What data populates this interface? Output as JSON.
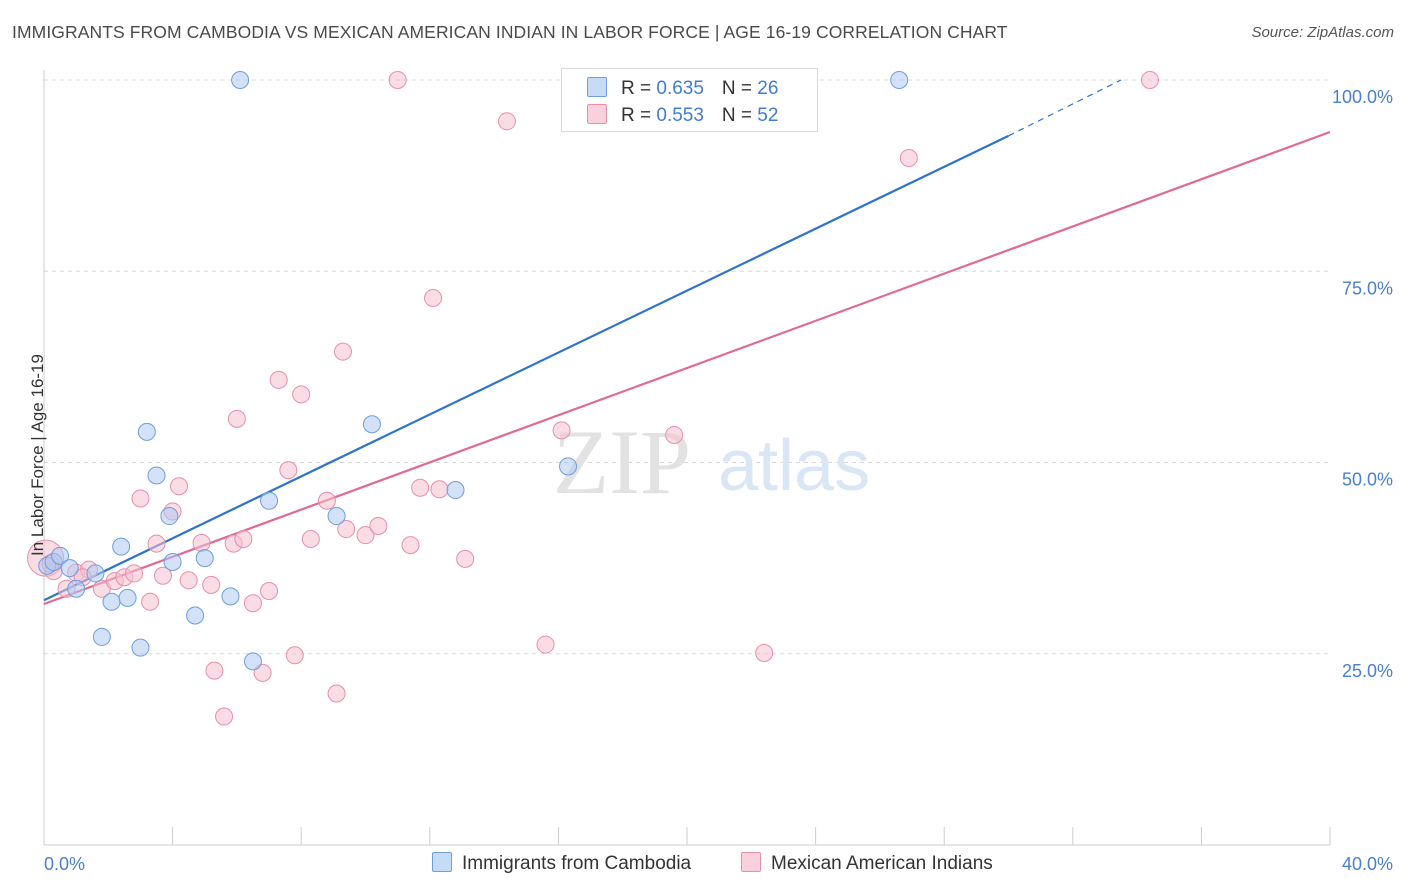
{
  "title": "IMMIGRANTS FROM CAMBODIA VS MEXICAN AMERICAN INDIAN IN LABOR FORCE | AGE 16-19 CORRELATION CHART",
  "source": "Source: ZipAtlas.com",
  "watermark": {
    "zip": "ZIP",
    "atlas": "atlas"
  },
  "legend": {
    "cambodia": {
      "r_label": "R = ",
      "r_value": "0.635",
      "n_label": "N = ",
      "n_value": "26"
    },
    "mexican": {
      "r_label": "R = ",
      "r_value": "0.553",
      "n_label": "N = ",
      "n_value": "52"
    }
  },
  "colors": {
    "cambodia_fill": "#aecbf2",
    "cambodia_stroke": "#6e9edb",
    "cambodia_line": "#2f73cc",
    "mexican_fill": "#f6c0d0",
    "mexican_stroke": "#e88fab",
    "mexican_line": "#e06a94",
    "grid": "#d8d8d8",
    "tick_label": "#4a7fcc"
  },
  "chart_data": {
    "type": "scatter",
    "title": "IMMIGRANTS FROM CAMBODIA VS MEXICAN AMERICAN INDIAN IN LABOR FORCE | AGE 16-19 CORRELATION CHART",
    "xlabel": "",
    "ylabel": "In Labor Force | Age 16-19",
    "xlim": [
      0,
      40
    ],
    "ylim": [
      0,
      102
    ],
    "x_tick_labels": [
      "0.0%",
      "40.0%"
    ],
    "y_ticks": [
      25,
      50,
      75,
      100
    ],
    "y_tick_labels": [
      "25.0%",
      "50.0%",
      "75.0%",
      "100.0%"
    ],
    "grid": true,
    "legend_position": "top-center",
    "series": [
      {
        "name": "Immigrants from Cambodia",
        "points": [
          [
            0.1,
            36.5
          ],
          [
            0.3,
            37.0
          ],
          [
            0.5,
            37.8
          ],
          [
            0.8,
            36.2
          ],
          [
            1.0,
            33.5
          ],
          [
            1.6,
            35.5
          ],
          [
            1.8,
            27.2
          ],
          [
            2.1,
            31.8
          ],
          [
            2.4,
            39.0
          ],
          [
            2.6,
            32.3
          ],
          [
            3.0,
            25.8
          ],
          [
            3.2,
            54.0
          ],
          [
            3.5,
            48.3
          ],
          [
            3.9,
            43.0
          ],
          [
            4.0,
            37.0
          ],
          [
            4.7,
            30.0
          ],
          [
            5.0,
            37.5
          ],
          [
            5.8,
            32.5
          ],
          [
            6.1,
            100.0
          ],
          [
            6.5,
            24.0
          ],
          [
            7.0,
            45.0
          ],
          [
            9.1,
            43.0
          ],
          [
            10.2,
            55.0
          ],
          [
            12.8,
            46.4
          ],
          [
            16.3,
            49.5
          ],
          [
            26.6,
            100.0
          ]
        ],
        "trend": {
          "x": [
            0,
            30.0
          ],
          "y": [
            32.0,
            92.7
          ],
          "dashed_extension": {
            "x": [
              30.0,
              33.5
            ],
            "y": [
              92.7,
              100.0
            ]
          }
        }
      },
      {
        "name": "Mexican American Indians",
        "points": [
          [
            0.05,
            37.5
          ],
          [
            0.3,
            35.8
          ],
          [
            0.7,
            33.5
          ],
          [
            1.0,
            35.6
          ],
          [
            1.4,
            36.0
          ],
          [
            1.8,
            33.5
          ],
          [
            2.2,
            34.5
          ],
          [
            2.5,
            35.0
          ],
          [
            2.8,
            35.5
          ],
          [
            3.0,
            45.3
          ],
          [
            3.3,
            31.8
          ],
          [
            3.5,
            39.4
          ],
          [
            3.7,
            35.2
          ],
          [
            4.0,
            43.6
          ],
          [
            4.2,
            46.9
          ],
          [
            4.5,
            34.6
          ],
          [
            4.9,
            39.5
          ],
          [
            5.3,
            22.8
          ],
          [
            5.2,
            34.0
          ],
          [
            5.6,
            16.8
          ],
          [
            5.9,
            39.4
          ],
          [
            6.0,
            55.7
          ],
          [
            6.2,
            40.0
          ],
          [
            6.5,
            31.6
          ],
          [
            6.8,
            22.5
          ],
          [
            7.0,
            33.2
          ],
          [
            7.3,
            60.8
          ],
          [
            7.6,
            49.0
          ],
          [
            7.8,
            24.8
          ],
          [
            8.0,
            58.9
          ],
          [
            8.3,
            40.0
          ],
          [
            8.8,
            45.0
          ],
          [
            9.1,
            19.8
          ],
          [
            9.3,
            64.5
          ],
          [
            9.4,
            41.3
          ],
          [
            10.0,
            40.5
          ],
          [
            10.4,
            41.7
          ],
          [
            11.0,
            100.0
          ],
          [
            11.4,
            39.2
          ],
          [
            11.7,
            46.7
          ],
          [
            12.1,
            71.5
          ],
          [
            12.3,
            46.5
          ],
          [
            13.1,
            37.4
          ],
          [
            14.4,
            94.6
          ],
          [
            15.6,
            26.2
          ],
          [
            16.1,
            54.2
          ],
          [
            19.6,
            53.6
          ],
          [
            22.4,
            25.1
          ],
          [
            26.9,
            89.8
          ],
          [
            34.4,
            100.0
          ],
          [
            0.2,
            36.8
          ],
          [
            1.2,
            35.0
          ]
        ],
        "trend": {
          "x": [
            0,
            40.0
          ],
          "y": [
            31.5,
            93.2
          ]
        }
      }
    ]
  },
  "bottom_legend": {
    "cambodia_label": "Immigrants from Cambodia",
    "mexican_label": "Mexican American Indians"
  }
}
